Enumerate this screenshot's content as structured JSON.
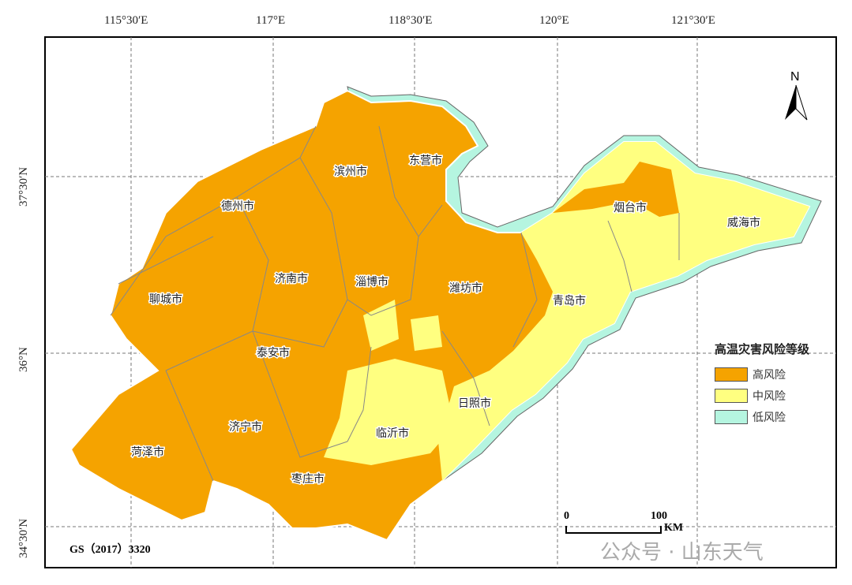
{
  "map": {
    "lon_ticks": [
      "115°30′E",
      "117°E",
      "118°30′E",
      "120°E",
      "121°30′E"
    ],
    "lat_ticks": [
      "37°30′N",
      "36°N",
      "34°30′N"
    ],
    "north_label": "N",
    "cities": [
      "德州市",
      "滨州市",
      "东营市",
      "烟台市",
      "威海市",
      "聊城市",
      "济南市",
      "淄博市",
      "潍坊市",
      "青岛市",
      "泰安市",
      "日照市",
      "济宁市",
      "临沂市",
      "菏泽市",
      "枣庄市"
    ],
    "legend": {
      "title": "高温灾害风险等级",
      "items": [
        {
          "label": "高风险",
          "color": "#F5A300"
        },
        {
          "label": "中风险",
          "color": "#FFFF80"
        },
        {
          "label": "低风险",
          "color": "#B5F5E0"
        }
      ]
    },
    "scale": {
      "start": "0",
      "end": "100",
      "unit": "KM"
    },
    "approval": "GS（2017）3320",
    "watermark": "公众号 · 山东天气"
  }
}
